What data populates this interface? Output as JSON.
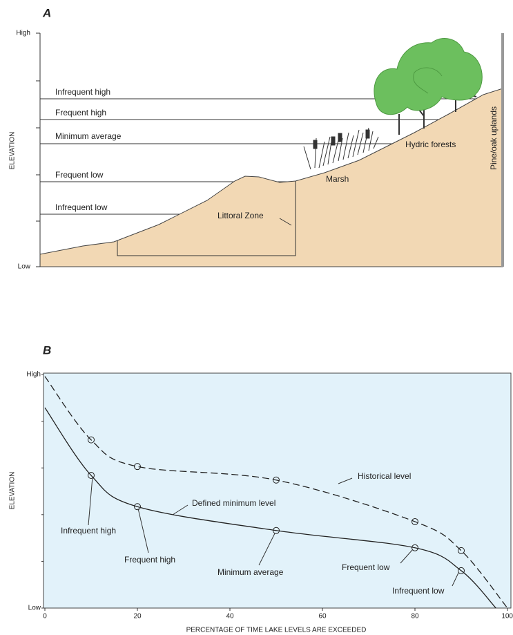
{
  "panel_a": {
    "title": "A",
    "y_high": "High",
    "y_low": "Low",
    "y_label": "ELEVATION",
    "levels": [
      "Infrequent high",
      "Frequent high",
      "Minimum average",
      "Frequent low",
      "Infrequent low"
    ],
    "zones": [
      "Littoral Zone",
      "Marsh",
      "Hydric forests",
      "Pine/oak uplands"
    ]
  },
  "chart_data": {
    "type": "line",
    "title": "B",
    "x_label": "PERCENTAGE OF TIME LAKE LEVELS ARE EXCEEDED",
    "y_label": "ELEVATION",
    "xlim": [
      0,
      100
    ],
    "xticks": [
      0,
      20,
      40,
      60,
      80,
      100
    ],
    "ylim": [
      0,
      5
    ],
    "yticks": [
      {
        "value": 0,
        "label": "Low"
      },
      {
        "value": 5,
        "label": "High"
      }
    ],
    "yminor": [
      1,
      2,
      3,
      4
    ],
    "series": [
      {
        "name": "Historical level",
        "color": "#222222",
        "dashed": true,
        "x": [
          0,
          10,
          20,
          50,
          80,
          90,
          100
        ],
        "values": [
          4.96,
          3.6,
          3.03,
          2.74,
          1.85,
          1.23,
          0
        ]
      },
      {
        "name": "Defined minimum level",
        "color": "#222222",
        "dashed": false,
        "x": [
          0,
          10,
          20,
          50,
          80,
          90,
          97.5
        ],
        "values": [
          4.29,
          2.84,
          2.17,
          1.66,
          1.29,
          0.8,
          0
        ]
      }
    ],
    "annotations": [
      "Infrequent high",
      "Frequent high",
      "Minimum average",
      "Frequent low",
      "Infrequent low"
    ]
  }
}
